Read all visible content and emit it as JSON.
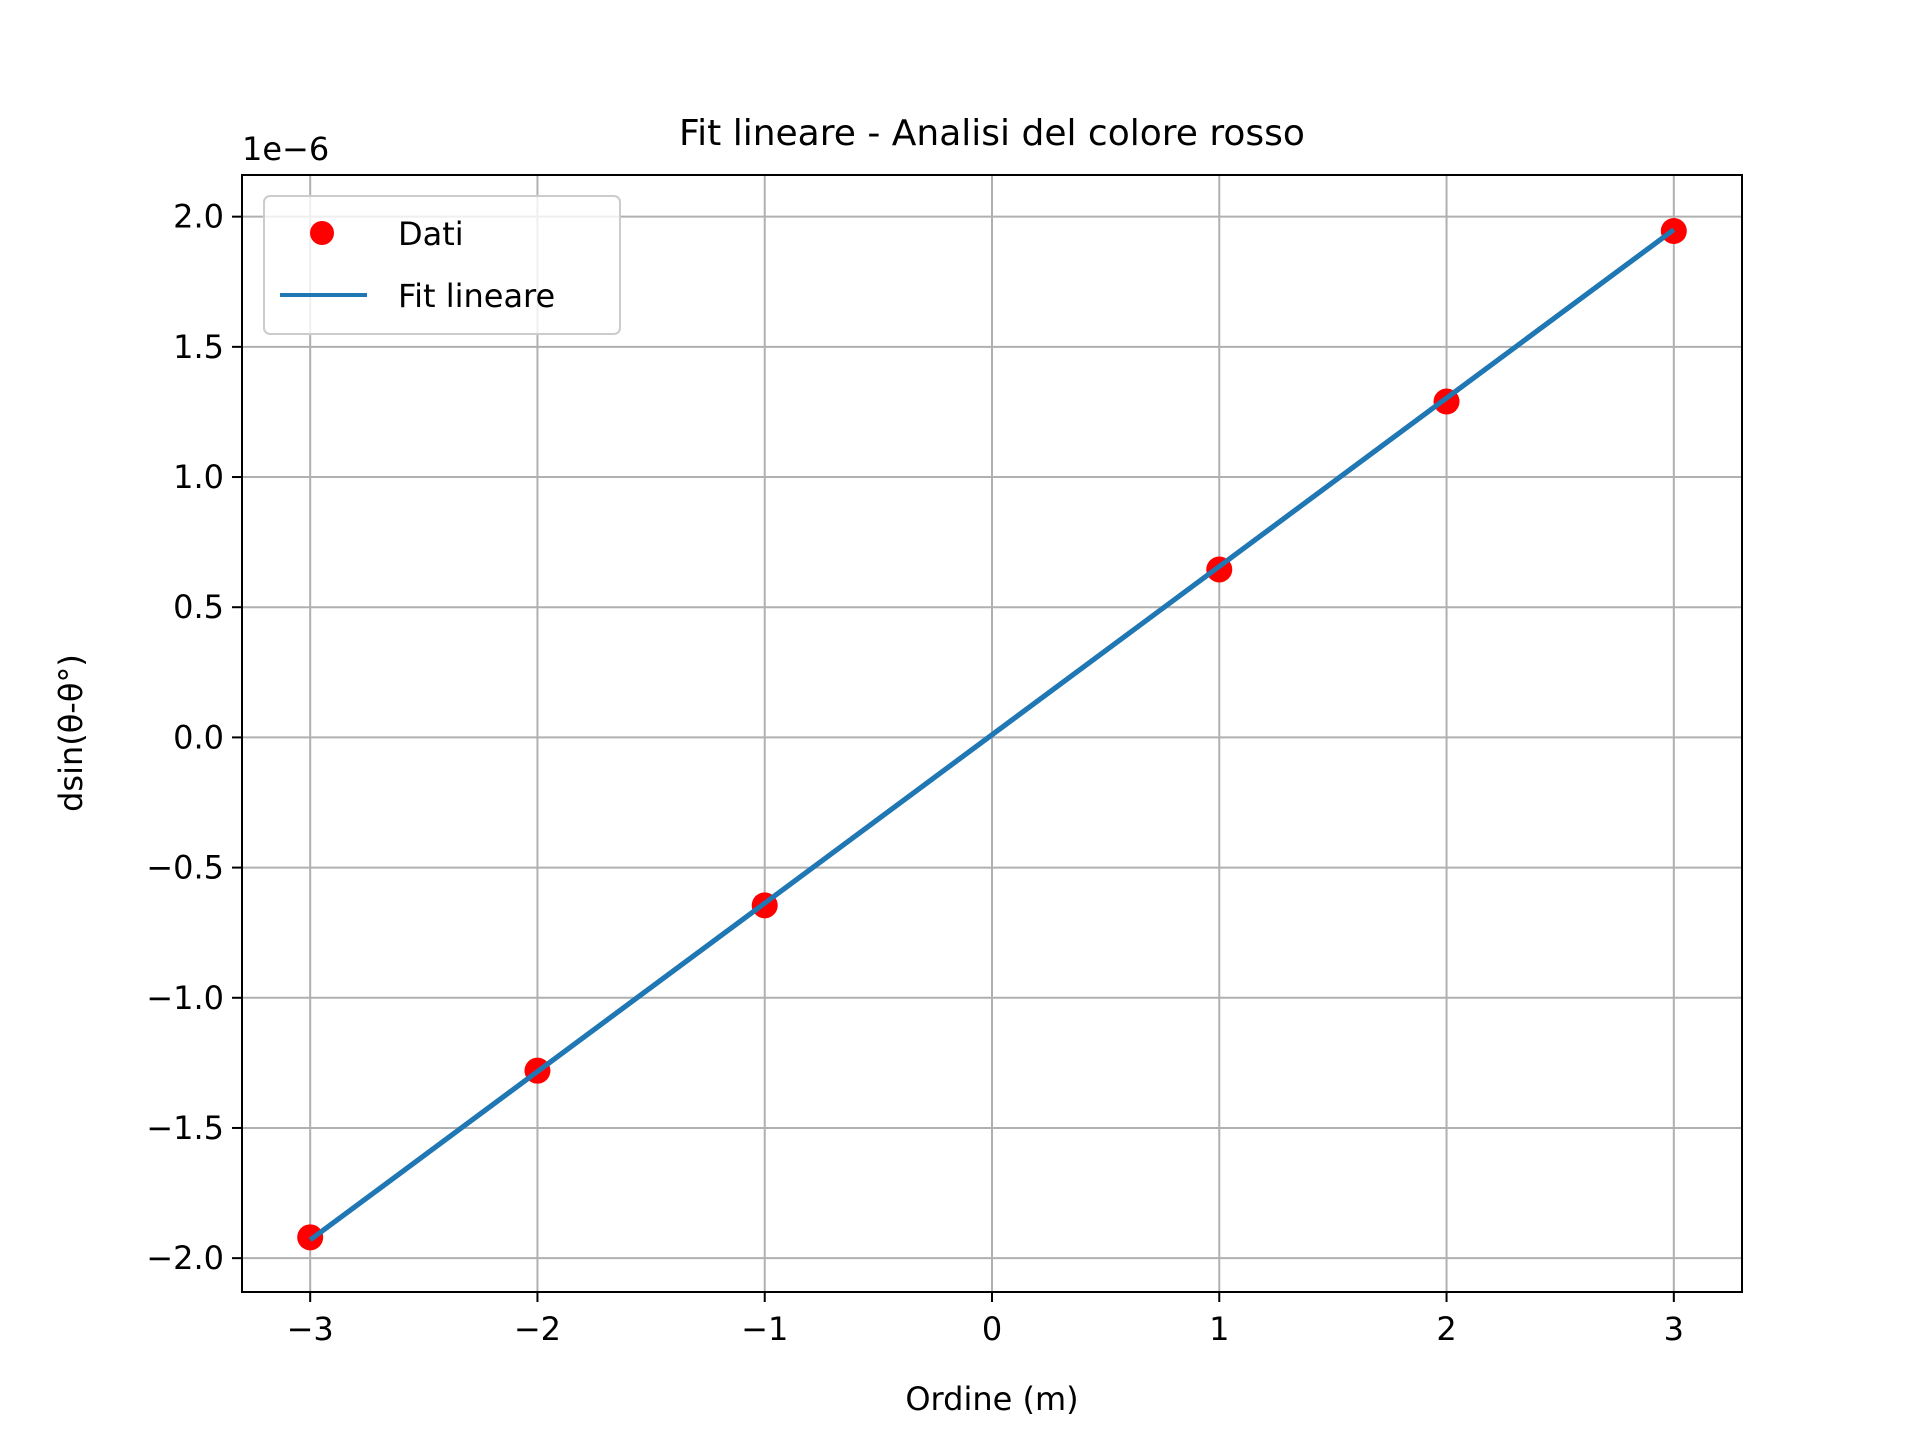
{
  "chart_data": {
    "type": "scatter",
    "title": "Fit lineare - Analisi del colore rosso",
    "xlabel": "Ordine (m)",
    "ylabel": "dsin(θ-θ°)",
    "y_scale_label": "1e−6",
    "y_scale_factor": 1e-06,
    "xlim": [
      -3.3,
      3.3
    ],
    "ylim": [
      -2.13e-06,
      2.16e-06
    ],
    "grid": true,
    "legend_position": "top-left",
    "x_ticks": [
      -3,
      -2,
      -1,
      0,
      1,
      2,
      3
    ],
    "x_tick_labels": [
      "−3",
      "−2",
      "−1",
      "0",
      "1",
      "2",
      "3"
    ],
    "y_ticks": [
      -2.0,
      -1.5,
      -1.0,
      -0.5,
      0.0,
      0.5,
      1.0,
      1.5,
      2.0
    ],
    "y_tick_labels": [
      "−2.0",
      "−1.5",
      "−1.0",
      "−0.5",
      "0.0",
      "0.5",
      "1.0",
      "1.5",
      "2.0"
    ],
    "series": [
      {
        "name": "Dati",
        "kind": "scatter",
        "color": "#ff0000",
        "x": [
          -3,
          -2,
          -1,
          1,
          2,
          3
        ],
        "y": [
          -1.92e-06,
          -1.28e-06,
          -6.45e-07,
          6.45e-07,
          1.29e-06,
          1.945e-06
        ]
      },
      {
        "name": "Fit lineare",
        "kind": "line",
        "color": "#1f77b4",
        "x": [
          -3,
          3
        ],
        "y": [
          -1.93e-06,
          1.95e-06
        ]
      }
    ]
  }
}
